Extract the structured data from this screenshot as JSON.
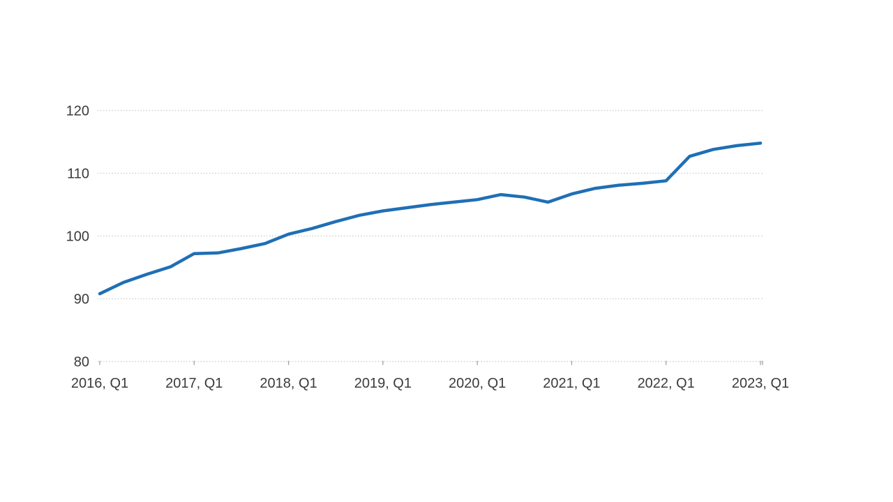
{
  "page": {
    "background_color": "#ffffff",
    "title": "",
    "legend": "none"
  },
  "chart_data": {
    "type": "line",
    "title": "",
    "xlabel": "",
    "ylabel": "",
    "x": [
      "2016 Q1",
      "2016 Q2",
      "2016 Q3",
      "2016 Q4",
      "2017 Q1",
      "2017 Q2",
      "2017 Q3",
      "2017 Q4",
      "2018 Q1",
      "2018 Q2",
      "2018 Q3",
      "2018 Q4",
      "2019 Q1",
      "2019 Q2",
      "2019 Q3",
      "2019 Q4",
      "2020 Q1",
      "2020 Q2",
      "2020 Q3",
      "2020 Q4",
      "2021 Q1",
      "2021 Q2",
      "2021 Q3",
      "2021 Q4",
      "2022 Q1",
      "2022 Q2",
      "2022 Q3",
      "2022 Q4",
      "2023 Q1"
    ],
    "values": [
      90.8,
      92.6,
      93.9,
      95.1,
      97.2,
      97.3,
      98.0,
      98.8,
      100.3,
      101.2,
      102.3,
      103.3,
      104.0,
      104.5,
      105.0,
      105.4,
      105.8,
      106.6,
      106.2,
      105.4,
      106.7,
      107.6,
      108.1,
      108.4,
      108.8,
      112.7,
      113.8,
      114.4,
      114.8
    ],
    "x_tick_labels": [
      "2016, Q1",
      "2017, Q1",
      "2018, Q1",
      "2019, Q1",
      "2020, Q1",
      "2021, Q1",
      "2022, Q1",
      "2023, Q1"
    ],
    "y_ticks": [
      80,
      90,
      100,
      110,
      120
    ],
    "ylim": [
      80,
      120
    ],
    "grid": "horizontal-dotted",
    "legend_position": "none",
    "line_color": "#1f6fb5",
    "grid_color": "#c8c8c8",
    "tick_color": "#9a9a9a",
    "label_color": "#3b3b3b"
  }
}
